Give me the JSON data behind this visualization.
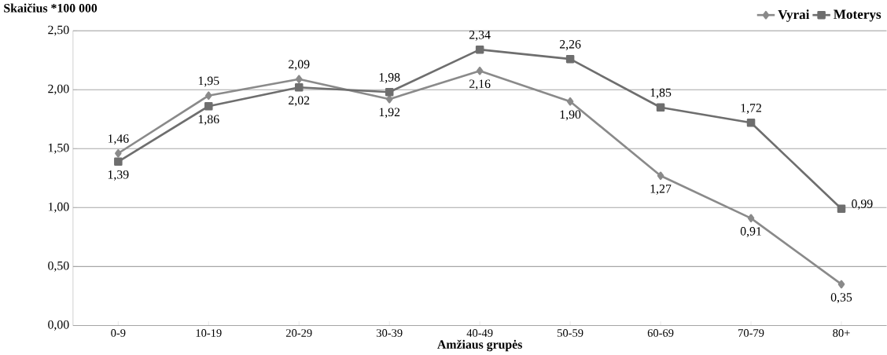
{
  "chart_data": {
    "type": "line",
    "ylabel": "Skaičius *100 000",
    "xlabel": "Amžiaus grupės",
    "categories": [
      "0-9",
      "10-19",
      "20-29",
      "30-39",
      "40-49",
      "50-59",
      "60-69",
      "70-79",
      "80+"
    ],
    "series": [
      {
        "name": "Vyrai",
        "color": "#8a8a8a",
        "marker": "diamond",
        "values": [
          1.46,
          1.95,
          2.09,
          1.92,
          2.16,
          1.9,
          1.27,
          0.91,
          0.35
        ],
        "value_labels": [
          "1,46",
          "1,95",
          "2,09",
          "1,92",
          "2,16",
          "1,90",
          "1,27",
          "0,91",
          "0,35"
        ]
      },
      {
        "name": "Moterys",
        "color": "#6e6e6e",
        "marker": "square",
        "values": [
          1.39,
          1.86,
          2.02,
          1.98,
          2.34,
          2.26,
          1.85,
          1.72,
          0.99
        ],
        "value_labels": [
          "1,39",
          "1,86",
          "2,02",
          "1,98",
          "2,34",
          "2,26",
          "1,85",
          "1,72",
          "0,99"
        ]
      }
    ],
    "ylim": [
      0,
      2.5
    ],
    "yticks": [
      {
        "value": 0,
        "label": "0,00"
      },
      {
        "value": 0.5,
        "label": "0,50"
      },
      {
        "value": 1,
        "label": "1,00"
      },
      {
        "value": 1.5,
        "label": "1,50"
      },
      {
        "value": 2,
        "label": "2,00"
      },
      {
        "value": 2.5,
        "label": "2,50"
      }
    ],
    "grid": "y",
    "legend": "top right",
    "line_style": "solid"
  }
}
